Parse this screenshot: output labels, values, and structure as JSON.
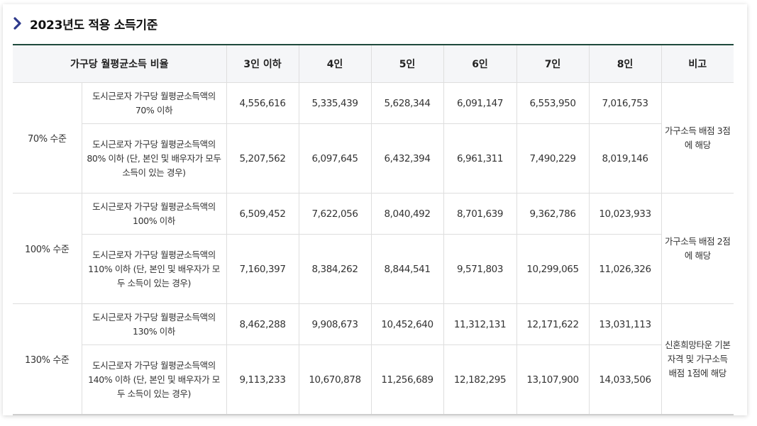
{
  "heading": {
    "title": "2023년도 적용 소득기준"
  },
  "table": {
    "headers": [
      "가구당 월평균소득 비율",
      "3인 이하",
      "4인",
      "5인",
      "6인",
      "7인",
      "8인",
      "비고"
    ],
    "groups": [
      {
        "level": "70% 수준",
        "note": "가구소득 배점 3점에 해당",
        "rows": [
          {
            "desc": "도시근로자 가구당 월평균소득액의 70% 이하",
            "values": [
              "4,556,616",
              "5,335,439",
              "5,628,344",
              "6,091,147",
              "6,553,950",
              "7,016,753"
            ]
          },
          {
            "desc": "도시근로자 가구당 월평균소득액의 80% 이하 (단, 본인 및 배우자가 모두 소득이 있는 경우)",
            "values": [
              "5,207,562",
              "6,097,645",
              "6,432,394",
              "6,961,311",
              "7,490,229",
              "8,019,146"
            ]
          }
        ]
      },
      {
        "level": "100% 수준",
        "note": "가구소득 배점 2점에 해당",
        "rows": [
          {
            "desc": "도시근로자 가구당 월평균소득액의 100% 이하",
            "values": [
              "6,509,452",
              "7,622,056",
              "8,040,492",
              "8,701,639",
              "9,362,786",
              "10,023,933"
            ]
          },
          {
            "desc": "도시근로자 가구당 월평균소득액의 110% 이하 (단, 본인 및 배우자가 모두 소득이 있는 경우)",
            "values": [
              "7,160,397",
              "8,384,262",
              "8,844,541",
              "9,571,803",
              "10,299,065",
              "11,026,326"
            ]
          }
        ]
      },
      {
        "level": "130% 수준",
        "note": "신혼희망타운 기본자격 및 가구소득 배점 1점에 해당",
        "rows": [
          {
            "desc": "도시근로자 가구당 월평균소득액의 130% 이하",
            "values": [
              "8,462,288",
              "9,908,673",
              "10,452,640",
              "11,312,131",
              "12,171,622",
              "13,031,113"
            ]
          },
          {
            "desc": "도시근로자 가구당 월평균소득액의 140% 이하 (단, 본인 및 배우자가 모두 소득이 있는 경우)",
            "values": [
              "9,113,233",
              "10,670,878",
              "11,256,689",
              "12,182,295",
              "13,107,900",
              "14,033,506"
            ]
          }
        ]
      }
    ]
  },
  "colors": {
    "accent": "#2e3a8c",
    "header_border": "#1f4a3c",
    "header_bg": "#f5f6f8"
  }
}
